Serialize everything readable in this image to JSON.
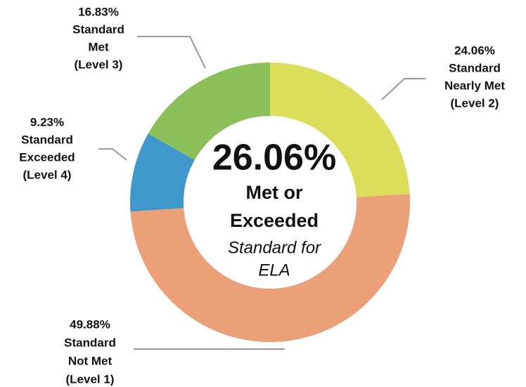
{
  "chart_data": {
    "type": "donut",
    "categories": [
      [
        "Standard",
        "Nearly Met",
        "(Level 2)"
      ],
      [
        "Standard",
        "Not Met",
        "(Level 1)"
      ],
      [
        "Standard",
        "Exceeded",
        "(Level 4)"
      ],
      [
        "Standard",
        "Met",
        "(Level 3)"
      ]
    ],
    "values": [
      24.06,
      49.88,
      9.23,
      16.83
    ],
    "value_labels": [
      "24.06%",
      "49.88%",
      "9.23%",
      "16.83%"
    ],
    "colors": [
      "#dade5a",
      "#eba077",
      "#3f97cc",
      "#8bbf58"
    ],
    "center_label": "26.06%",
    "center_lines": [
      "Met or",
      "Exceeded"
    ],
    "center_subtitle_lines": [
      "Standard for",
      "ELA"
    ]
  }
}
